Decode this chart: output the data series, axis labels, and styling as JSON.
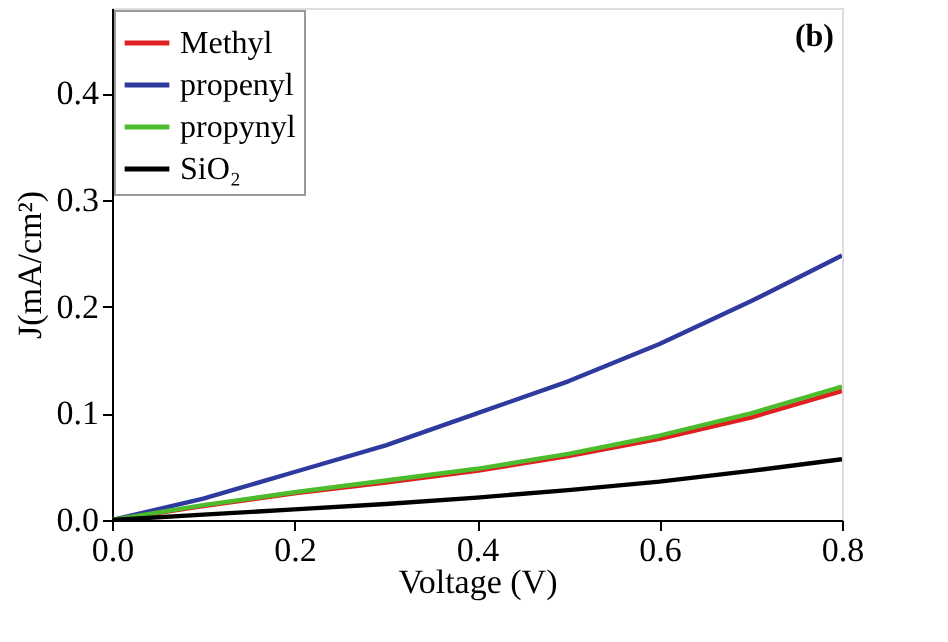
{
  "chart_data": {
    "type": "line",
    "xlabel": "Voltage (V)",
    "ylabel": "J(mA/cm²)",
    "x": [
      0,
      0.1,
      0.2,
      0.3,
      0.4,
      0.5,
      0.6,
      0.7,
      0.8
    ],
    "series": [
      {
        "name": "Methyl",
        "color": "#e02020",
        "values": [
          0,
          0.013,
          0.025,
          0.035,
          0.046,
          0.06,
          0.076,
          0.096,
          0.121
        ]
      },
      {
        "name": "propenyl",
        "color": "#2e3a9e",
        "values": [
          0,
          0.02,
          0.045,
          0.07,
          0.1,
          0.13,
          0.165,
          0.205,
          0.248
        ]
      },
      {
        "name": "propynyl",
        "color": "#4cbb2c",
        "values": [
          0,
          0.014,
          0.026,
          0.037,
          0.048,
          0.062,
          0.079,
          0.1,
          0.125
        ]
      },
      {
        "name": "SiO₂",
        "color": "#000000",
        "values": [
          0,
          0.005,
          0.01,
          0.015,
          0.021,
          0.028,
          0.036,
          0.046,
          0.057
        ]
      }
    ],
    "xlim": [
      0,
      0.8
    ],
    "xticks": [
      {
        "value": 0,
        "label": "0.0"
      },
      0.2,
      0.4,
      0.6,
      0.8
    ],
    "ylim": [
      0,
      0.48
    ],
    "yticks": [
      {
        "value": 0,
        "label": "0.0"
      },
      0.1,
      0.2,
      0.3,
      0.4
    ],
    "annotations": [
      "(b)"
    ],
    "legend": "top left",
    "grid": false,
    "marker": "none",
    "line_style": "solid"
  }
}
